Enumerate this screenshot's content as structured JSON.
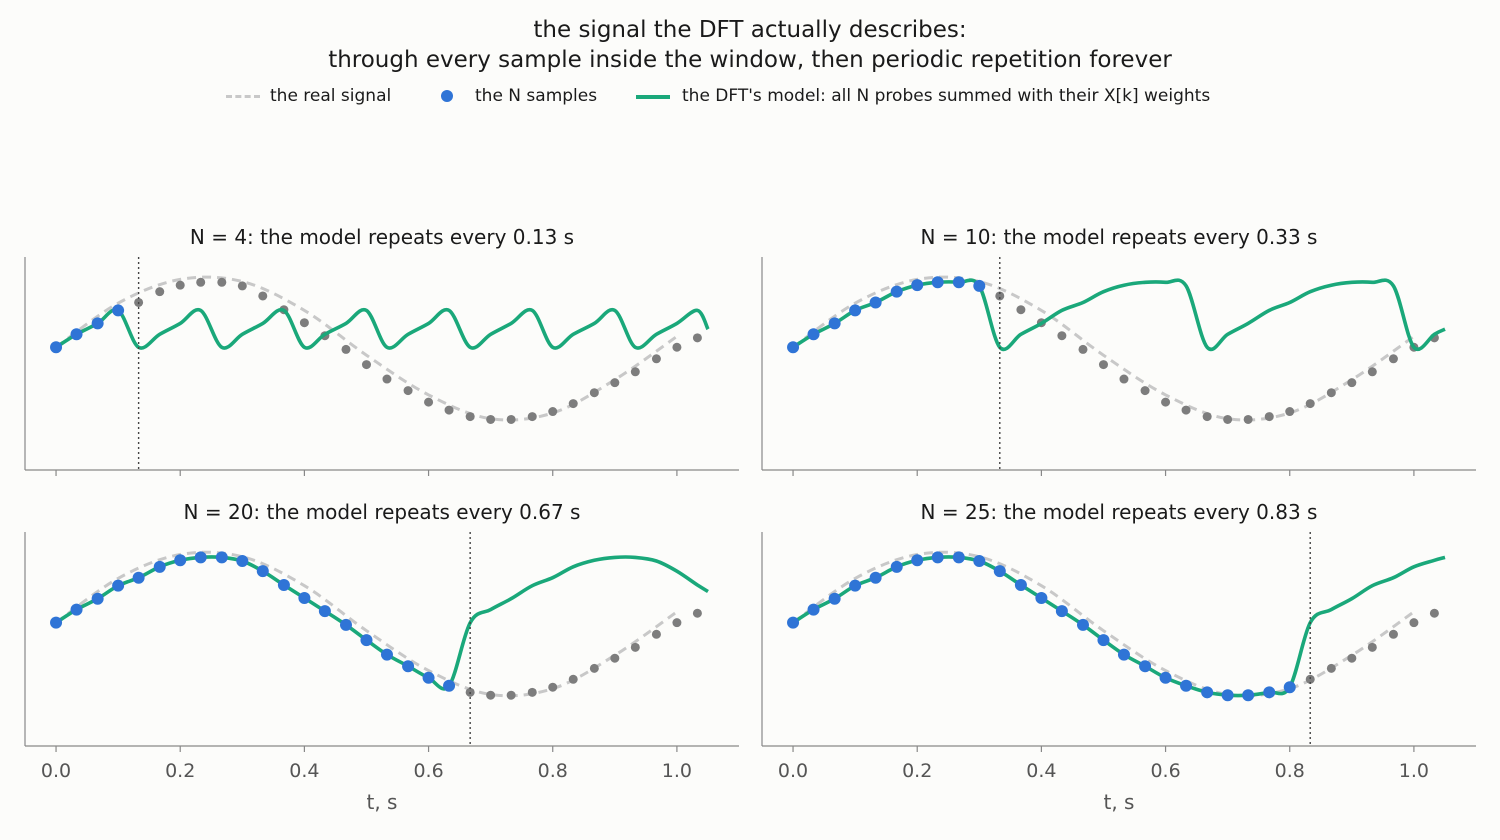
{
  "suptitle": {
    "line1": "the signal the DFT actually describes:",
    "line2": "through every sample inside the window, then periodic repetition forever"
  },
  "legend": {
    "real": "the real signal",
    "samples": "the N samples",
    "model": "the DFT's model: all N probes summed with their X[k] weights"
  },
  "colors": {
    "real": "#c8c8c8",
    "samples": "#2f74d6",
    "outside": "#7d7d7d",
    "model": "#1aa87a",
    "axis": "#888888",
    "window_line": "#444444"
  },
  "chart_data": [
    {
      "type": "line",
      "title": "N = 4:  the model repeats every 0.13 s",
      "N": 4,
      "period": 0.133,
      "sample_spacing": 0.0333,
      "xlim": [
        -0.05,
        1.1
      ],
      "ylim": [
        -1.7,
        1.25
      ],
      "x_ticks": [
        "0.0",
        "0.2",
        "0.4",
        "0.6",
        "0.8",
        "1.0"
      ],
      "x_tick_labels_shown": false,
      "xlabel": "",
      "real_signal": {
        "name": "the real signal",
        "x": [
          0.0,
          0.1,
          0.2,
          0.3,
          0.4,
          0.5,
          0.6,
          0.7,
          0.8,
          0.9,
          1.0
        ],
        "y": [
          0.0,
          0.61,
          0.94,
          0.91,
          0.51,
          -0.11,
          -0.66,
          -0.99,
          -0.91,
          -0.45,
          0.15
        ]
      },
      "samples_in_window": {
        "x": [
          0.0,
          0.033,
          0.067,
          0.1
        ],
        "y": [
          0.0,
          0.18,
          0.33,
          0.51
        ]
      },
      "samples_outside": {
        "x": [
          0.133,
          0.167,
          0.2,
          0.233,
          0.267,
          0.3,
          0.333,
          0.367,
          0.4,
          0.433,
          0.467,
          0.5,
          0.533,
          0.567,
          0.6,
          0.633,
          0.667,
          0.7,
          0.733,
          0.767,
          0.8,
          0.833,
          0.867,
          0.9,
          0.933,
          0.967,
          1.0,
          1.033
        ],
        "y": [
          0.62,
          0.77,
          0.86,
          0.9,
          0.9,
          0.85,
          0.71,
          0.52,
          0.34,
          0.16,
          -0.03,
          -0.24,
          -0.44,
          -0.6,
          -0.76,
          -0.87,
          -0.96,
          -1.0,
          -1.0,
          -0.96,
          -0.89,
          -0.78,
          -0.63,
          -0.49,
          -0.34,
          -0.16,
          0.0,
          0.13
        ]
      },
      "model": {
        "name": "the DFT's model",
        "x": [
          0.0,
          0.033,
          0.067,
          0.1,
          0.133,
          0.167,
          0.2,
          0.233,
          0.267,
          0.3,
          0.333,
          0.367,
          0.4,
          0.433,
          0.467,
          0.5,
          0.533,
          0.567,
          0.6,
          0.633,
          0.667,
          0.7,
          0.733,
          0.767,
          0.8,
          0.833,
          0.867,
          0.9,
          0.933,
          0.967,
          1.0,
          1.033,
          1.05
        ],
        "y": [
          0.0,
          0.18,
          0.33,
          0.51,
          0.0,
          0.18,
          0.33,
          0.51,
          0.0,
          0.18,
          0.33,
          0.51,
          0.0,
          0.18,
          0.33,
          0.51,
          0.0,
          0.18,
          0.33,
          0.51,
          0.0,
          0.18,
          0.33,
          0.51,
          0.0,
          0.18,
          0.33,
          0.51,
          0.0,
          0.18,
          0.33,
          0.51,
          0.25
        ]
      }
    },
    {
      "type": "line",
      "title": "N = 10:  the model repeats every 0.33 s",
      "N": 10,
      "period": 0.333,
      "sample_spacing": 0.0333,
      "xlim": [
        -0.05,
        1.1
      ],
      "ylim": [
        -1.7,
        1.25
      ],
      "x_ticks": [
        "0.0",
        "0.2",
        "0.4",
        "0.6",
        "0.8",
        "1.0"
      ],
      "x_tick_labels_shown": false,
      "xlabel": "",
      "real_signal": {
        "name": "the real signal",
        "x": [
          0.0,
          0.1,
          0.2,
          0.3,
          0.4,
          0.5,
          0.6,
          0.7,
          0.8,
          0.9,
          1.0
        ],
        "y": [
          0.0,
          0.61,
          0.94,
          0.91,
          0.51,
          -0.11,
          -0.66,
          -0.99,
          -0.91,
          -0.45,
          0.15
        ]
      },
      "samples_in_window": {
        "x": [
          0.0,
          0.033,
          0.067,
          0.1,
          0.133,
          0.167,
          0.2,
          0.233,
          0.267,
          0.3
        ],
        "y": [
          0.0,
          0.18,
          0.33,
          0.51,
          0.62,
          0.77,
          0.86,
          0.9,
          0.9,
          0.85
        ]
      },
      "samples_outside": {
        "x": [
          0.333,
          0.367,
          0.4,
          0.433,
          0.467,
          0.5,
          0.533,
          0.567,
          0.6,
          0.633,
          0.667,
          0.7,
          0.733,
          0.767,
          0.8,
          0.833,
          0.867,
          0.9,
          0.933,
          0.967,
          1.0,
          1.033
        ],
        "y": [
          0.71,
          0.52,
          0.34,
          0.16,
          -0.03,
          -0.24,
          -0.44,
          -0.6,
          -0.76,
          -0.87,
          -0.96,
          -1.0,
          -1.0,
          -0.96,
          -0.89,
          -0.78,
          -0.63,
          -0.49,
          -0.34,
          -0.16,
          0.0,
          0.13
        ]
      },
      "model": {
        "name": "the DFT's model",
        "x": [
          0.0,
          0.033,
          0.067,
          0.1,
          0.133,
          0.167,
          0.2,
          0.233,
          0.267,
          0.3,
          0.333,
          0.367,
          0.4,
          0.433,
          0.467,
          0.5,
          0.533,
          0.567,
          0.6,
          0.633,
          0.667,
          0.7,
          0.733,
          0.767,
          0.8,
          0.833,
          0.867,
          0.9,
          0.933,
          0.967,
          1.0,
          1.033,
          1.05
        ],
        "y": [
          0.0,
          0.18,
          0.33,
          0.51,
          0.62,
          0.77,
          0.86,
          0.9,
          0.9,
          0.85,
          0.0,
          0.18,
          0.33,
          0.51,
          0.62,
          0.77,
          0.86,
          0.9,
          0.9,
          0.85,
          0.0,
          0.18,
          0.33,
          0.51,
          0.62,
          0.77,
          0.86,
          0.9,
          0.9,
          0.85,
          0.0,
          0.18,
          0.25
        ]
      }
    },
    {
      "type": "line",
      "title": "N = 20:  the model repeats every 0.67 s",
      "N": 20,
      "period": 0.667,
      "sample_spacing": 0.0333,
      "xlim": [
        -0.05,
        1.1
      ],
      "ylim": [
        -1.7,
        1.25
      ],
      "x_ticks": [
        "0.0",
        "0.2",
        "0.4",
        "0.6",
        "0.8",
        "1.0"
      ],
      "x_tick_labels_shown": true,
      "xlabel": "",
      "real_signal": {
        "name": "the real signal",
        "x": [
          0.0,
          0.1,
          0.2,
          0.3,
          0.4,
          0.5,
          0.6,
          0.7,
          0.8,
          0.9,
          1.0
        ],
        "y": [
          0.0,
          0.61,
          0.94,
          0.91,
          0.51,
          -0.11,
          -0.66,
          -0.99,
          -0.91,
          -0.45,
          0.15
        ]
      },
      "samples_in_window": {
        "x": [
          0.0,
          0.033,
          0.067,
          0.1,
          0.133,
          0.167,
          0.2,
          0.233,
          0.267,
          0.3,
          0.333,
          0.367,
          0.4,
          0.433,
          0.467,
          0.5,
          0.533,
          0.567,
          0.6,
          0.633
        ],
        "y": [
          0.0,
          0.18,
          0.33,
          0.51,
          0.62,
          0.77,
          0.86,
          0.9,
          0.9,
          0.85,
          0.71,
          0.52,
          0.34,
          0.16,
          -0.03,
          -0.24,
          -0.44,
          -0.6,
          -0.76,
          -0.87
        ]
      },
      "samples_outside": {
        "x": [
          0.667,
          0.7,
          0.733,
          0.767,
          0.8,
          0.833,
          0.867,
          0.9,
          0.933,
          0.967,
          1.0,
          1.033
        ],
        "y": [
          -0.96,
          -1.0,
          -1.0,
          -0.96,
          -0.89,
          -0.78,
          -0.63,
          -0.49,
          -0.34,
          -0.16,
          0.0,
          0.13
        ]
      },
      "model": {
        "name": "the DFT's model",
        "x": [
          0.0,
          0.033,
          0.067,
          0.1,
          0.133,
          0.167,
          0.2,
          0.233,
          0.267,
          0.3,
          0.333,
          0.367,
          0.4,
          0.433,
          0.467,
          0.5,
          0.533,
          0.567,
          0.6,
          0.633,
          0.667,
          0.7,
          0.733,
          0.767,
          0.8,
          0.833,
          0.867,
          0.9,
          0.933,
          0.967,
          1.0,
          1.033,
          1.05
        ],
        "y": [
          0.0,
          0.18,
          0.33,
          0.51,
          0.62,
          0.77,
          0.86,
          0.9,
          0.9,
          0.85,
          0.71,
          0.52,
          0.34,
          0.16,
          -0.03,
          -0.24,
          -0.44,
          -0.6,
          -0.76,
          -0.87,
          0.0,
          0.18,
          0.33,
          0.51,
          0.62,
          0.77,
          0.86,
          0.9,
          0.9,
          0.85,
          0.71,
          0.52,
          0.43
        ]
      }
    },
    {
      "type": "line",
      "title": "N = 25:  the model repeats every 0.83 s",
      "N": 25,
      "period": 0.833,
      "sample_spacing": 0.0333,
      "xlim": [
        -0.05,
        1.1
      ],
      "ylim": [
        -1.7,
        1.25
      ],
      "x_ticks": [
        "0.0",
        "0.2",
        "0.4",
        "0.6",
        "0.8",
        "1.0"
      ],
      "x_tick_labels_shown": true,
      "xlabel": "",
      "real_signal": {
        "name": "the real signal",
        "x": [
          0.0,
          0.1,
          0.2,
          0.3,
          0.4,
          0.5,
          0.6,
          0.7,
          0.8,
          0.9,
          1.0
        ],
        "y": [
          0.0,
          0.61,
          0.94,
          0.91,
          0.51,
          -0.11,
          -0.66,
          -0.99,
          -0.91,
          -0.45,
          0.15
        ]
      },
      "samples_in_window": {
        "x": [
          0.0,
          0.033,
          0.067,
          0.1,
          0.133,
          0.167,
          0.2,
          0.233,
          0.267,
          0.3,
          0.333,
          0.367,
          0.4,
          0.433,
          0.467,
          0.5,
          0.533,
          0.567,
          0.6,
          0.633,
          0.667,
          0.7,
          0.733,
          0.767,
          0.8
        ],
        "y": [
          0.0,
          0.18,
          0.33,
          0.51,
          0.62,
          0.77,
          0.86,
          0.9,
          0.9,
          0.85,
          0.71,
          0.52,
          0.34,
          0.16,
          -0.03,
          -0.24,
          -0.44,
          -0.6,
          -0.76,
          -0.87,
          -0.96,
          -1.0,
          -1.0,
          -0.96,
          -0.89
        ]
      },
      "samples_outside": {
        "x": [
          0.833,
          0.867,
          0.9,
          0.933,
          0.967,
          1.0,
          1.033
        ],
        "y": [
          -0.78,
          -0.63,
          -0.49,
          -0.34,
          -0.16,
          0.0,
          0.13
        ]
      },
      "model": {
        "name": "the DFT's model",
        "x": [
          0.0,
          0.033,
          0.067,
          0.1,
          0.133,
          0.167,
          0.2,
          0.233,
          0.267,
          0.3,
          0.333,
          0.367,
          0.4,
          0.433,
          0.467,
          0.5,
          0.533,
          0.567,
          0.6,
          0.633,
          0.667,
          0.7,
          0.733,
          0.767,
          0.8,
          0.833,
          0.867,
          0.9,
          0.933,
          0.967,
          1.0,
          1.033,
          1.05
        ],
        "y": [
          0.0,
          0.18,
          0.33,
          0.51,
          0.62,
          0.77,
          0.86,
          0.9,
          0.9,
          0.85,
          0.71,
          0.52,
          0.34,
          0.16,
          -0.03,
          -0.24,
          -0.44,
          -0.6,
          -0.76,
          -0.87,
          -0.96,
          -1.0,
          -1.0,
          -0.96,
          -0.89,
          0.0,
          0.18,
          0.33,
          0.51,
          0.62,
          0.77,
          0.86,
          0.9
        ]
      }
    }
  ],
  "xlabel_bottom": "t, s"
}
